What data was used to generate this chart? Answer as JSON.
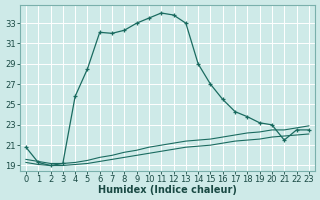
{
  "xlabel": "Humidex (Indice chaleur)",
  "x_values": [
    0,
    1,
    2,
    3,
    4,
    5,
    6,
    7,
    8,
    9,
    10,
    11,
    12,
    13,
    14,
    15,
    16,
    17,
    18,
    19,
    20,
    21,
    22,
    23
  ],
  "main_line": [
    20.8,
    19.3,
    19.0,
    19.2,
    25.8,
    28.5,
    32.1,
    32.0,
    32.3,
    33.0,
    33.5,
    34.0,
    33.8,
    33.0,
    29.0,
    27.0,
    25.5,
    24.3,
    23.8,
    23.2,
    23.0,
    21.5,
    22.5,
    22.5
  ],
  "low_line1": [
    19.3,
    19.1,
    19.0,
    19.0,
    19.1,
    19.2,
    19.4,
    19.6,
    19.8,
    20.0,
    20.2,
    20.4,
    20.6,
    20.8,
    20.9,
    21.0,
    21.2,
    21.4,
    21.5,
    21.6,
    21.8,
    21.9,
    22.0,
    22.1
  ],
  "low_line2": [
    19.6,
    19.4,
    19.2,
    19.2,
    19.3,
    19.5,
    19.8,
    20.0,
    20.3,
    20.5,
    20.8,
    21.0,
    21.2,
    21.4,
    21.5,
    21.6,
    21.8,
    22.0,
    22.2,
    22.3,
    22.5,
    22.5,
    22.7,
    22.9
  ],
  "ylim": [
    18.5,
    34.8
  ],
  "xlim": [
    -0.5,
    23.5
  ],
  "yticks": [
    19,
    21,
    23,
    25,
    27,
    29,
    31,
    33
  ],
  "bg_color": "#ceeae8",
  "grid_color": "#b8d8d6",
  "line_color": "#1a6b60",
  "tick_fontsize": 6.0,
  "label_fontsize": 7.0
}
